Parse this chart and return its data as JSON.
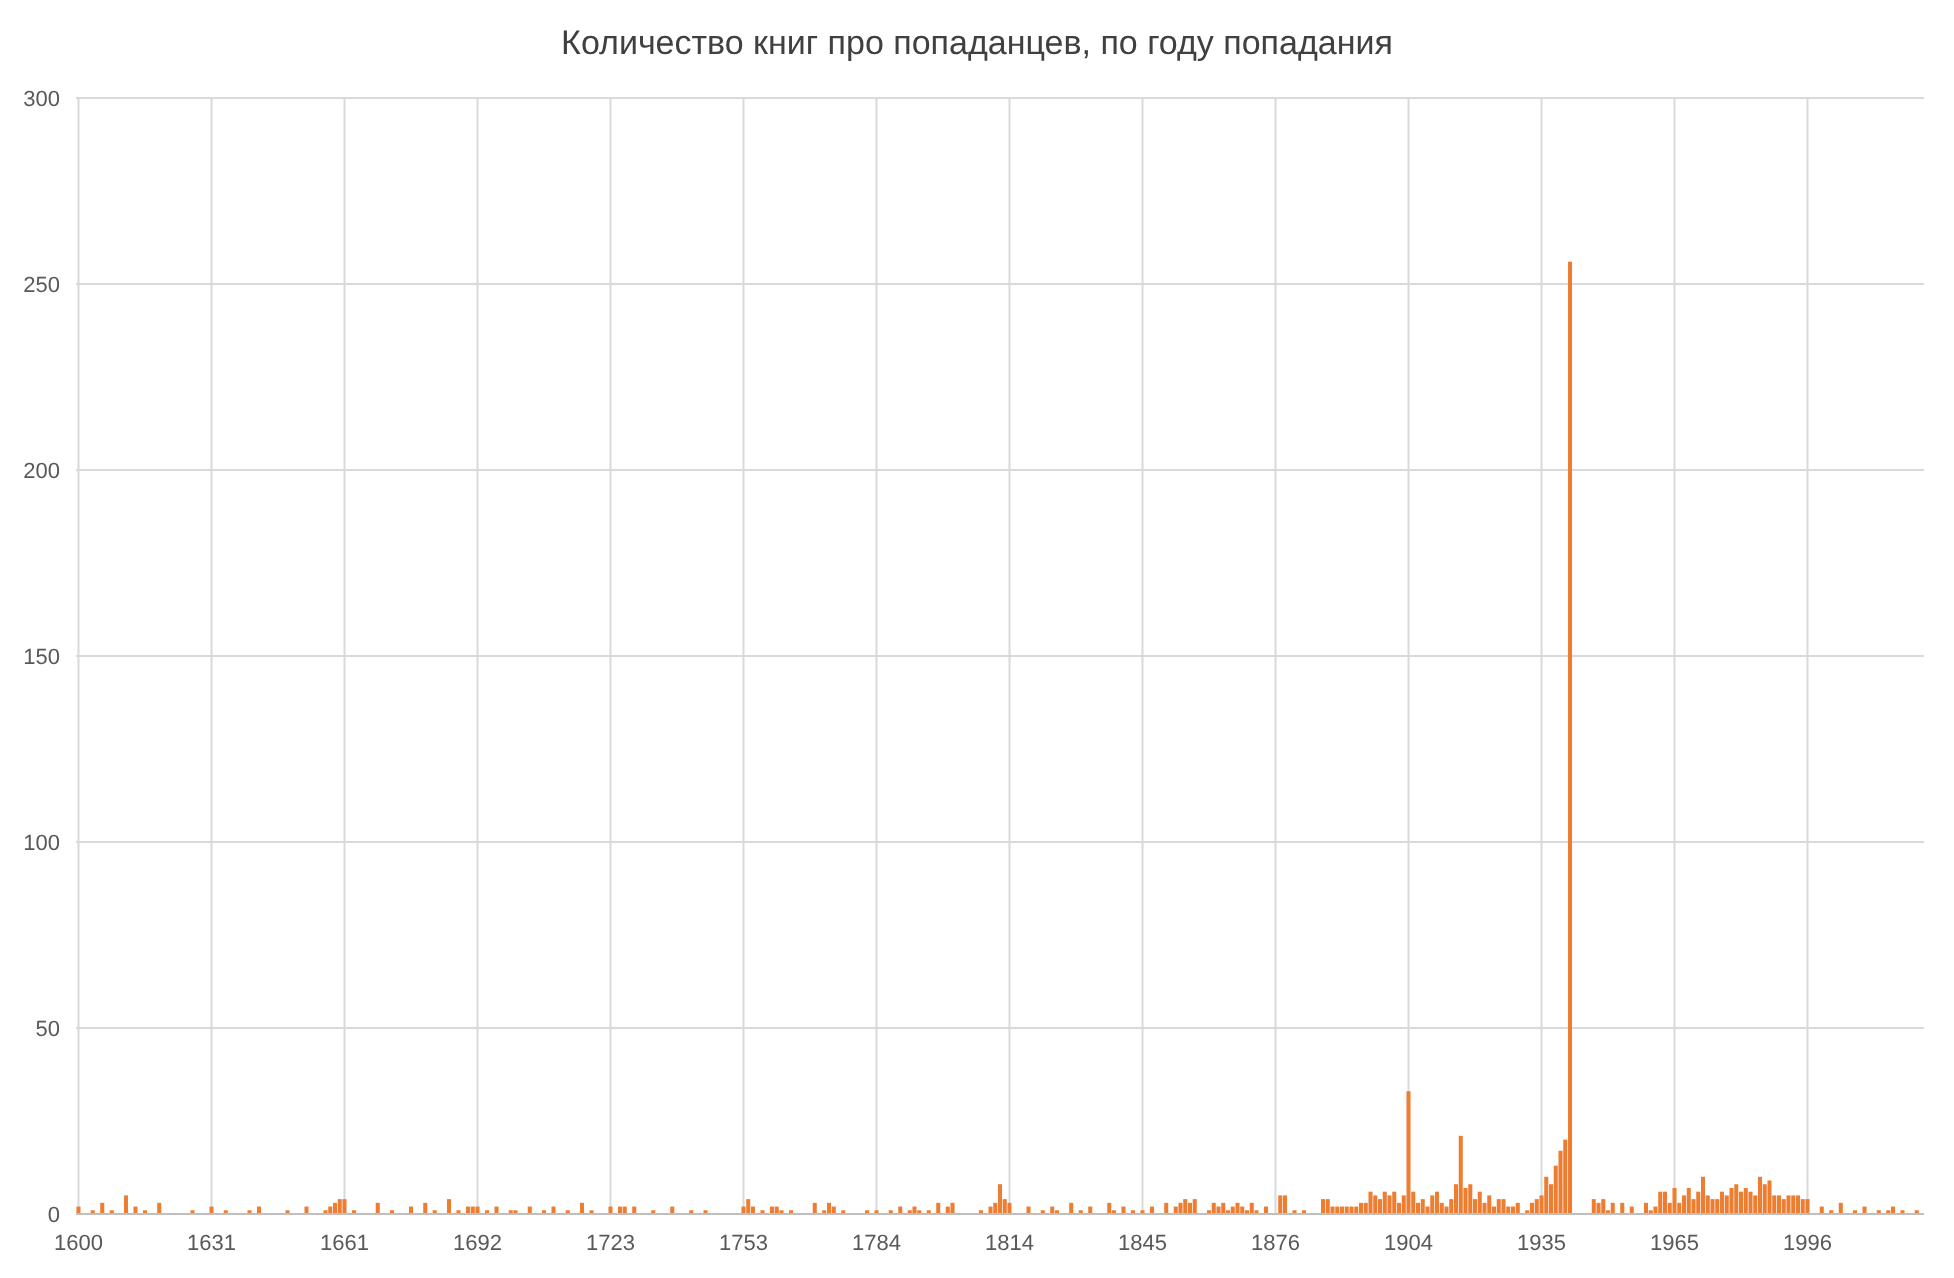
{
  "chart_data": {
    "type": "bar",
    "title": "Количество книг про попаданцев, по году попадания",
    "categories": [
      "1600",
      null,
      null,
      null,
      null,
      null,
      null,
      null,
      null,
      null,
      null,
      null,
      null,
      null,
      null,
      null,
      null,
      null,
      null,
      null,
      null,
      null,
      null,
      null,
      null,
      null,
      null,
      null,
      "1631",
      null,
      null,
      null,
      null,
      null,
      null,
      null,
      null,
      null,
      null,
      null,
      null,
      null,
      null,
      null,
      null,
      null,
      null,
      null,
      null,
      null,
      null,
      null,
      null,
      null,
      null,
      null,
      "1661",
      null,
      null,
      null,
      null,
      null,
      null,
      null,
      null,
      null,
      null,
      null,
      null,
      null,
      null,
      null,
      null,
      null,
      null,
      null,
      null,
      null,
      null,
      null,
      null,
      null,
      null,
      null,
      "1692",
      null,
      null,
      null,
      null,
      null,
      null,
      null,
      null,
      null,
      null,
      null,
      null,
      null,
      null,
      null,
      null,
      null,
      null,
      null,
      null,
      null,
      null,
      null,
      null,
      null,
      null,
      null,
      "1723",
      null,
      null,
      null,
      null,
      null,
      null,
      null,
      null,
      null,
      null,
      null,
      null,
      null,
      null,
      null,
      null,
      null,
      null,
      null,
      null,
      null,
      null,
      null,
      null,
      null,
      null,
      null,
      "1753",
      null,
      null,
      null,
      null,
      null,
      null,
      null,
      null,
      null,
      null,
      null,
      null,
      null,
      null,
      null,
      null,
      null,
      null,
      null,
      null,
      null,
      null,
      null,
      null,
      null,
      null,
      null,
      "1784",
      null,
      null,
      null,
      null,
      null,
      null,
      null,
      null,
      null,
      null,
      null,
      null,
      null,
      null,
      null,
      null,
      null,
      null,
      null,
      null,
      null,
      null,
      null,
      null,
      null,
      null,
      null,
      "1814",
      null,
      null,
      null,
      null,
      null,
      null,
      null,
      null,
      null,
      null,
      null,
      null,
      null,
      null,
      null,
      null,
      null,
      null,
      null,
      null,
      null,
      null,
      null,
      null,
      null,
      null,
      null,
      "1845",
      null,
      null,
      null,
      null,
      null,
      null,
      null,
      null,
      null,
      null,
      null,
      null,
      null,
      null,
      null,
      null,
      null,
      null,
      null,
      null,
      null,
      null,
      null,
      null,
      null,
      null,
      null,
      "1876",
      null,
      null,
      null,
      null,
      null,
      null,
      null,
      null,
      null,
      null,
      null,
      null,
      null,
      null,
      null,
      null,
      null,
      null,
      null,
      null,
      null,
      null,
      null,
      null,
      null,
      null,
      null,
      "1904",
      null,
      null,
      null,
      null,
      null,
      null,
      null,
      null,
      null,
      null,
      null,
      null,
      null,
      null,
      null,
      null,
      null,
      null,
      null,
      null,
      null,
      null,
      null,
      null,
      null,
      null,
      null,
      "1935",
      null,
      null,
      null,
      null,
      null,
      null,
      null,
      null,
      null,
      null,
      null,
      null,
      null,
      null,
      null,
      null,
      null,
      null,
      null,
      null,
      null,
      null,
      null,
      null,
      null,
      null,
      null,
      "1965",
      null,
      null,
      null,
      null,
      null,
      null,
      null,
      null,
      null,
      null,
      null,
      null,
      null,
      null,
      null,
      null,
      null,
      null,
      null,
      null,
      null,
      null,
      null,
      null,
      null,
      null,
      null,
      "1996",
      null,
      null,
      null,
      null,
      null,
      null,
      null,
      null,
      null,
      null,
      null,
      null,
      null,
      null,
      null,
      null,
      null,
      null,
      null,
      null,
      null,
      null,
      null,
      null
    ],
    "values": [
      2,
      0,
      0,
      1,
      0,
      3,
      0,
      1,
      0,
      0,
      5,
      0,
      2,
      0,
      1,
      0,
      0,
      3,
      0,
      0,
      0,
      0,
      0,
      0,
      1,
      0,
      0,
      0,
      2,
      0,
      0,
      1,
      0,
      0,
      0,
      0,
      1,
      0,
      2,
      0,
      0,
      0,
      0,
      0,
      1,
      0,
      0,
      0,
      2,
      0,
      0,
      0,
      1,
      2,
      3,
      4,
      4,
      0,
      1,
      0,
      0,
      0,
      0,
      3,
      0,
      0,
      1,
      0,
      0,
      0,
      2,
      0,
      0,
      3,
      0,
      1,
      0,
      0,
      4,
      0,
      1,
      0,
      2,
      2,
      2,
      0,
      1,
      0,
      2,
      0,
      0,
      1,
      1,
      0,
      0,
      2,
      0,
      0,
      1,
      0,
      2,
      0,
      0,
      1,
      0,
      0,
      3,
      0,
      1,
      0,
      0,
      0,
      2,
      0,
      2,
      2,
      0,
      2,
      0,
      0,
      0,
      1,
      0,
      0,
      0,
      2,
      0,
      0,
      0,
      1,
      0,
      0,
      1,
      0,
      0,
      0,
      0,
      0,
      0,
      0,
      2,
      4,
      2,
      0,
      1,
      0,
      2,
      2,
      1,
      0,
      1,
      0,
      0,
      0,
      0,
      3,
      0,
      1,
      3,
      2,
      0,
      1,
      0,
      0,
      0,
      0,
      1,
      0,
      1,
      0,
      0,
      1,
      0,
      2,
      0,
      1,
      2,
      1,
      0,
      1,
      0,
      3,
      0,
      2,
      3,
      0,
      0,
      0,
      0,
      0,
      1,
      0,
      2,
      3,
      8,
      4,
      3,
      0,
      0,
      0,
      2,
      0,
      0,
      1,
      0,
      2,
      1,
      0,
      0,
      3,
      0,
      1,
      0,
      2,
      0,
      0,
      0,
      3,
      1,
      0,
      2,
      0,
      1,
      0,
      1,
      0,
      2,
      0,
      0,
      3,
      0,
      2,
      3,
      4,
      3,
      4,
      0,
      0,
      1,
      3,
      2,
      3,
      1,
      2,
      3,
      2,
      1,
      3,
      1,
      0,
      2,
      0,
      0,
      5,
      5,
      0,
      1,
      0,
      1,
      0,
      0,
      0,
      4,
      4,
      2,
      2,
      2,
      2,
      2,
      2,
      3,
      3,
      6,
      5,
      4,
      6,
      5,
      6,
      3,
      5,
      33,
      6,
      3,
      4,
      2,
      5,
      6,
      3,
      2,
      4,
      8,
      21,
      7,
      8,
      4,
      6,
      3,
      5,
      2,
      4,
      4,
      2,
      2,
      3,
      0,
      1,
      3,
      4,
      5,
      10,
      8,
      13,
      17,
      20,
      256,
      0,
      0,
      0,
      0,
      4,
      3,
      4,
      1,
      3,
      0,
      3,
      0,
      2,
      0,
      0,
      3,
      1,
      2,
      6,
      6,
      3,
      7,
      3,
      5,
      7,
      4,
      6,
      10,
      5,
      4,
      4,
      6,
      5,
      7,
      8,
      6,
      7,
      6,
      5,
      10,
      8,
      9,
      5,
      5,
      4,
      5,
      5,
      5,
      4,
      4,
      0,
      0,
      2,
      0,
      1,
      0,
      3,
      0,
      0,
      1,
      0,
      2,
      0,
      0,
      1,
      0,
      1,
      2,
      0,
      1,
      0,
      0,
      1,
      0
    ],
    "color": "#ed7d31",
    "ylim": [
      0,
      300
    ],
    "yticks": [
      0,
      50,
      100,
      150,
      200,
      250,
      300
    ],
    "grid": true
  }
}
